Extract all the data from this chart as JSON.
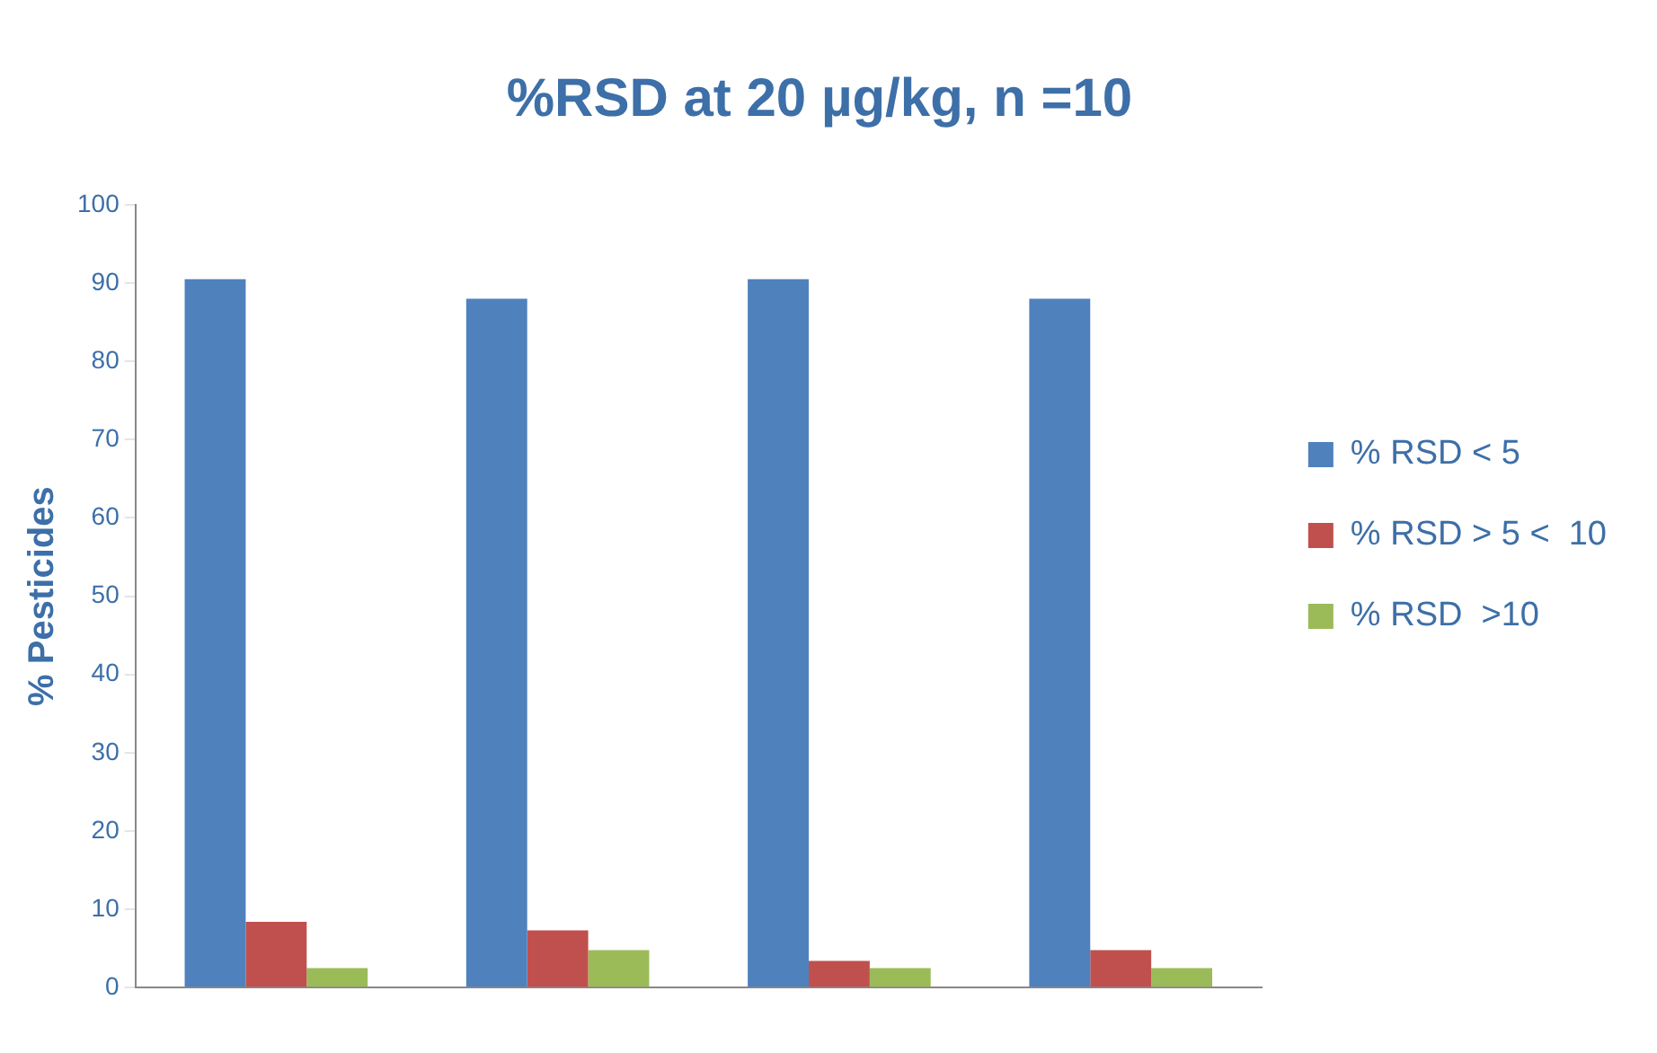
{
  "chart_data": {
    "type": "bar",
    "title": "%RSD at 20 µg/kg, n =10",
    "ylabel": "% Pesticides",
    "categories": [
      null,
      null,
      null,
      null
    ],
    "series": [
      {
        "name": "% RSD < 5",
        "color": "#4f81bd",
        "values": [
          90.5,
          88,
          90.5,
          88
        ]
      },
      {
        "name": "% RSD > 5 <  10",
        "color": "#c0504d",
        "values": [
          8.4,
          7.3,
          3.4,
          4.8
        ]
      },
      {
        "name": "% RSD  >10",
        "color": "#9bbb59",
        "values": [
          2.5,
          4.8,
          2.5,
          2.5
        ]
      }
    ],
    "ylim": [
      0,
      100
    ],
    "yticks": [
      0,
      10,
      20,
      30,
      40,
      50,
      60,
      70,
      80,
      90,
      100
    ],
    "grid": false,
    "legend": "right"
  }
}
